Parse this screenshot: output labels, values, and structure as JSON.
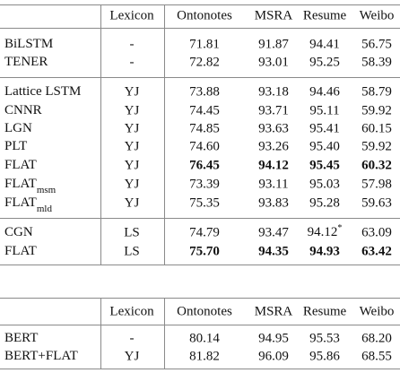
{
  "tables": [
    {
      "header": [
        "Lexicon",
        "Ontonotes",
        "MSRA",
        "Resume",
        "Weibo"
      ],
      "groups": [
        [
          {
            "name": "BiLSTM",
            "lexicon": "-",
            "values": [
              "71.81",
              "91.87",
              "94.41",
              "56.75"
            ]
          },
          {
            "name": "TENER",
            "lexicon": "-",
            "values": [
              "72.82",
              "93.01",
              "95.25",
              "58.39"
            ]
          }
        ],
        [
          {
            "name": "Lattice LSTM",
            "lexicon": "YJ",
            "values": [
              "73.88",
              "93.18",
              "94.46",
              "58.79"
            ]
          },
          {
            "name": "CNNR",
            "lexicon": "YJ",
            "values": [
              "74.45",
              "93.71",
              "95.11",
              "59.92"
            ]
          },
          {
            "name": "LGN",
            "lexicon": "YJ",
            "values": [
              "74.85",
              "93.63",
              "95.41",
              "60.15"
            ]
          },
          {
            "name": "PLT",
            "lexicon": "YJ",
            "values": [
              "74.60",
              "93.26",
              "95.40",
              "59.92"
            ]
          },
          {
            "name": "FLAT",
            "lexicon": "YJ",
            "values": [
              "76.45",
              "94.12",
              "95.45",
              "60.32"
            ],
            "bold": true
          },
          {
            "name": "FLAT",
            "sub": "msm",
            "lexicon": "YJ",
            "values": [
              "73.39",
              "93.11",
              "95.03",
              "57.98"
            ]
          },
          {
            "name": "FLAT",
            "sub": "mld",
            "lexicon": "YJ",
            "values": [
              "75.35",
              "93.83",
              "95.28",
              "59.63"
            ]
          }
        ],
        [
          {
            "name": "CGN",
            "lexicon": "LS",
            "values": [
              "74.79",
              "93.47",
              {
                "text": "94.12",
                "sup": "*"
              },
              "63.09"
            ]
          },
          {
            "name": "FLAT",
            "lexicon": "LS",
            "values": [
              "75.70",
              "94.35",
              "94.93",
              "63.42"
            ],
            "bold": true
          }
        ]
      ]
    },
    {
      "header": [
        "Lexicon",
        "Ontonotes",
        "MSRA",
        "Resume",
        "Weibo"
      ],
      "groups": [
        [
          {
            "name": "BERT",
            "lexicon": "-",
            "values": [
              "80.14",
              "94.95",
              "95.53",
              "68.20"
            ]
          },
          {
            "name": "BERT+FLAT",
            "lexicon": "YJ",
            "values": [
              "81.82",
              "96.09",
              "95.86",
              "68.55"
            ]
          }
        ]
      ]
    }
  ]
}
